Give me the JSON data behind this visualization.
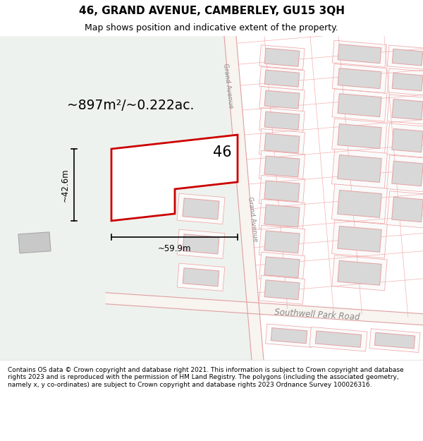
{
  "title": "46, GRAND AVENUE, CAMBERLEY, GU15 3QH",
  "subtitle": "Map shows position and indicative extent of the property.",
  "footer": "Contains OS data © Crown copyright and database right 2021. This information is subject to Crown copyright and database rights 2023 and is reproduced with the permission of HM Land Registry. The polygons (including the associated geometry, namely x, y co-ordinates) are subject to Crown copyright and database rights 2023 Ordnance Survey 100026316.",
  "area_text": "~897m²/~0.222ac.",
  "label_46": "46",
  "dim_width": "~59.9m",
  "dim_height": "~42.6m",
  "road1_label": "Grand Avenue",
  "road2_label": "Southwell Park Road",
  "bg_left_color": "#eef2ee",
  "map_bg_color": "#ffffff",
  "plot_fill": "#ffffff",
  "plot_edge": "#cc0000",
  "plot_lw": 2.0,
  "building_fill": "#d8d8d8",
  "building_edge": "#e8a0a0",
  "lot_line_color": "#f0a0a0",
  "road_line_color": "#e0a0a0",
  "road_label_color": "#888888",
  "text_color": "#000000",
  "footer_fontsize": 6.5,
  "title_fontsize": 11,
  "subtitle_fontsize": 9
}
